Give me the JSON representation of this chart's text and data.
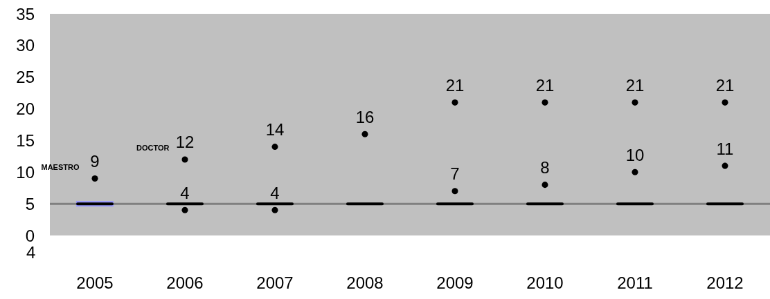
{
  "chart_data": {
    "type": "scatter",
    "categories": [
      "2005",
      "2006",
      "2007",
      "2008",
      "2009",
      "2010",
      "2011",
      "2012"
    ],
    "series": [
      {
        "name": "MAESTRO",
        "color": "#000000",
        "marker": "circle",
        "values": [
          9,
          4,
          4,
          null,
          7,
          8,
          10,
          11
        ]
      },
      {
        "name": "DOCTOR",
        "color": "#000000",
        "marker": "circle",
        "values": [
          null,
          12,
          14,
          16,
          21,
          21,
          21,
          21
        ]
      }
    ],
    "data_labels": true,
    "ylim": [
      0,
      35
    ],
    "yticks": [
      0,
      5,
      10,
      15,
      20,
      25,
      30,
      35
    ],
    "ref_lines": [
      {
        "axis": "y",
        "value": 5,
        "color": "#808080"
      }
    ],
    "annotations": [
      "4"
    ],
    "grid": false,
    "legend": false
  }
}
